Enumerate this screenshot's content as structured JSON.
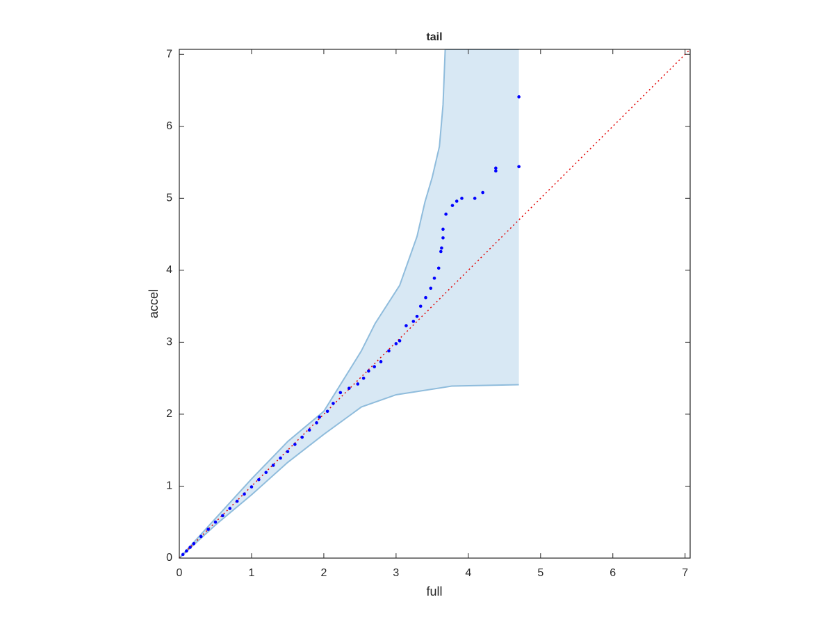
{
  "chart_data": {
    "type": "scatter",
    "title": "tail",
    "xlabel": "full",
    "ylabel": "accel",
    "xlim": [
      0,
      7.07
    ],
    "ylim": [
      0,
      7.07
    ],
    "xticks": [
      0,
      1,
      2,
      3,
      4,
      5,
      6,
      7
    ],
    "yticks": [
      0,
      1,
      2,
      3,
      4,
      5,
      6,
      7
    ],
    "series": [
      {
        "color": "#0000ff",
        "x": [
          0.05,
          0.1,
          0.15,
          0.2,
          0.3,
          0.4,
          0.5,
          0.6,
          0.7,
          0.8,
          0.9,
          1.0,
          1.1,
          1.2,
          1.3,
          1.4,
          1.5,
          1.6,
          1.7,
          1.8,
          1.9,
          1.94,
          2.05,
          2.13,
          2.23,
          2.35,
          2.47,
          2.55,
          2.62,
          2.7,
          2.79,
          2.9,
          3.0,
          3.05,
          3.14,
          3.24,
          3.29,
          3.34,
          3.41,
          3.48,
          3.53,
          3.59,
          3.62,
          3.63,
          3.65,
          3.65,
          3.69,
          3.78,
          3.84,
          3.91,
          4.09,
          4.2,
          4.38,
          4.38,
          4.7,
          4.7
        ],
        "values": [
          0.05,
          0.1,
          0.15,
          0.2,
          0.3,
          0.4,
          0.5,
          0.59,
          0.69,
          0.79,
          0.89,
          0.99,
          1.09,
          1.19,
          1.29,
          1.39,
          1.48,
          1.58,
          1.68,
          1.78,
          1.88,
          1.96,
          2.04,
          2.15,
          2.3,
          2.36,
          2.42,
          2.5,
          2.6,
          2.66,
          2.73,
          2.88,
          2.98,
          3.02,
          3.23,
          3.29,
          3.36,
          3.5,
          3.62,
          3.75,
          3.89,
          4.03,
          4.26,
          4.31,
          4.45,
          4.57,
          4.78,
          4.9,
          4.96,
          5.0,
          5.0,
          5.08,
          5.38,
          5.42,
          5.44,
          6.41
        ]
      }
    ],
    "band": {
      "color": "#d8e8f4",
      "edge_color": "#8fbcdc",
      "upper": {
        "x": [
          0,
          0.5,
          1,
          1.5,
          2,
          2.52,
          2.71,
          3.05,
          3.29,
          3.4,
          3.5,
          3.6,
          3.65,
          3.68,
          4.7
        ],
        "values": [
          0,
          0.55,
          1.1,
          1.62,
          2.04,
          2.88,
          3.26,
          3.79,
          4.47,
          4.95,
          5.29,
          5.72,
          6.3,
          7.07,
          7.07
        ]
      },
      "lower": {
        "x": [
          0,
          0.5,
          1,
          1.5,
          2,
          2.52,
          3.0,
          3.77,
          4.7
        ],
        "values": [
          0,
          0.46,
          0.88,
          1.33,
          1.72,
          2.1,
          2.27,
          2.39,
          2.41
        ]
      }
    },
    "reference_line": {
      "color": "#e00000",
      "x": [
        0,
        7.07
      ],
      "values": [
        0,
        7.07
      ]
    }
  }
}
